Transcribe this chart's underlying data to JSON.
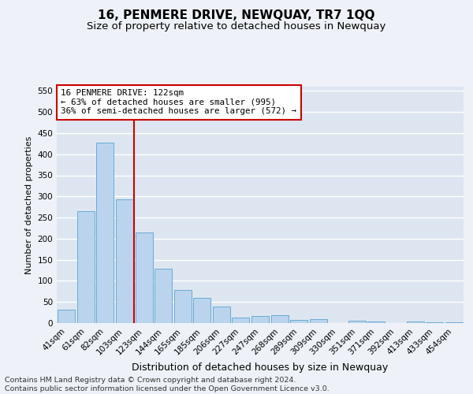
{
  "title": "16, PENMERE DRIVE, NEWQUAY, TR7 1QQ",
  "subtitle": "Size of property relative to detached houses in Newquay",
  "xlabel": "Distribution of detached houses by size in Newquay",
  "ylabel": "Number of detached properties",
  "footer_line1": "Contains HM Land Registry data © Crown copyright and database right 2024.",
  "footer_line2": "Contains public sector information licensed under the Open Government Licence v3.0.",
  "categories": [
    "41sqm",
    "61sqm",
    "82sqm",
    "103sqm",
    "123sqm",
    "144sqm",
    "165sqm",
    "185sqm",
    "206sqm",
    "227sqm",
    "247sqm",
    "268sqm",
    "289sqm",
    "309sqm",
    "330sqm",
    "351sqm",
    "371sqm",
    "392sqm",
    "413sqm",
    "433sqm",
    "454sqm"
  ],
  "values": [
    32,
    265,
    428,
    293,
    215,
    128,
    78,
    60,
    40,
    13,
    17,
    18,
    8,
    10,
    0,
    5,
    4,
    0,
    3,
    1,
    2
  ],
  "bar_color": "#bad4ee",
  "bar_edge_color": "#6aaad4",
  "vline_index": 4,
  "vline_color": "#cc0000",
  "annotation_title": "16 PENMERE DRIVE: 122sqm",
  "annotation_line1": "← 63% of detached houses are smaller (995)",
  "annotation_line2": "36% of semi-detached houses are larger (572) →",
  "annotation_box_color": "#cc0000",
  "ylim": [
    0,
    560
  ],
  "yticks": [
    0,
    50,
    100,
    150,
    200,
    250,
    300,
    350,
    400,
    450,
    500,
    550
  ],
  "background_color": "#eef2f8",
  "plot_bg_color": "#dde6f0",
  "grid_color": "#ffffff",
  "title_fontsize": 11,
  "subtitle_fontsize": 9.5,
  "ylabel_fontsize": 8,
  "xlabel_fontsize": 9,
  "tick_fontsize": 7.5,
  "annotation_fontsize": 7.8,
  "footer_fontsize": 6.8
}
